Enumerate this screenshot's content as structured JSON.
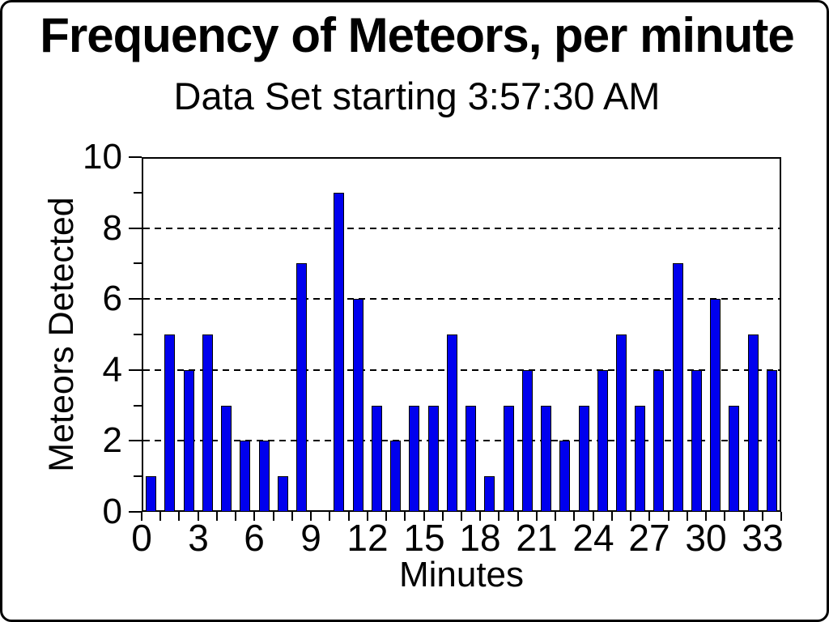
{
  "page": {
    "background_color": "#ffffff",
    "border_color": "#000000"
  },
  "chart_data": {
    "type": "bar",
    "title": "Frequency of Meteors, per minute",
    "subtitle": "Data Set starting 3:57:30 AM",
    "xlabel": "Minutes",
    "ylabel": "Meteors Detected",
    "categories": [
      0,
      1,
      2,
      3,
      4,
      5,
      6,
      7,
      8,
      9,
      10,
      11,
      12,
      13,
      14,
      15,
      16,
      17,
      18,
      19,
      20,
      21,
      22,
      23,
      24,
      25,
      26,
      27,
      28,
      29,
      30,
      31,
      32,
      33
    ],
    "values": [
      1,
      5,
      4,
      5,
      3,
      2,
      2,
      1,
      7,
      0,
      9,
      6,
      3,
      2,
      3,
      3,
      5,
      3,
      1,
      3,
      4,
      3,
      2,
      3,
      4,
      5,
      3,
      4,
      7,
      4,
      6,
      3,
      5,
      4
    ],
    "xlim": [
      0,
      34
    ],
    "ylim": [
      0,
      10
    ],
    "x_tick_labels": [
      "0",
      "3",
      "6",
      "9",
      "12",
      "15",
      "18",
      "21",
      "24",
      "27",
      "30",
      "33"
    ],
    "x_minor_tick_every": 1,
    "y_tick_labels": [
      "0",
      "2",
      "4",
      "6",
      "8",
      "10"
    ],
    "y_minor_ticks": [
      1,
      3,
      5,
      7,
      9
    ],
    "gridlines_y": [
      2,
      4,
      6,
      8
    ],
    "grid_style": "dashed-horizontal",
    "legend": "none",
    "bar_color": "#0000EE",
    "bar_border_color": "#000000",
    "text_color": "#000000",
    "bars_note": "one bar per minute slot; minute 9 has value 0 (no bar)"
  }
}
